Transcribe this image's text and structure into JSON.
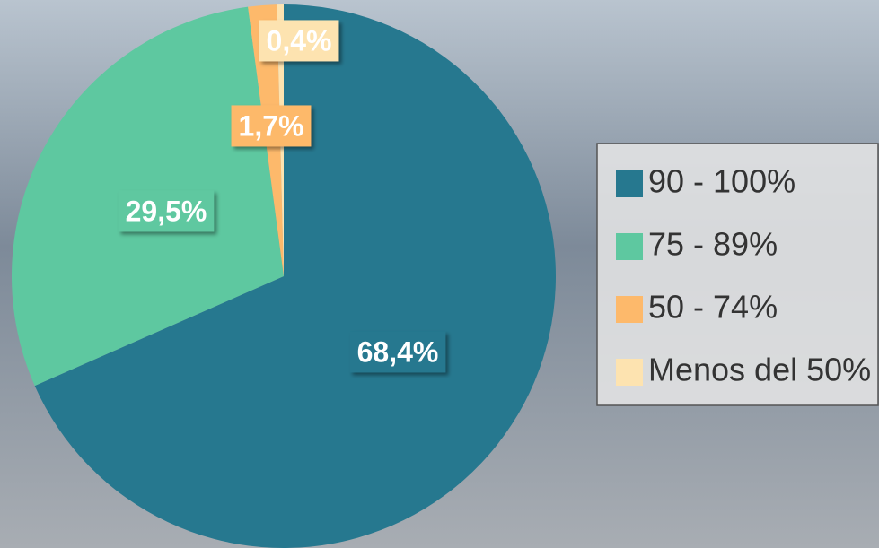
{
  "chart_data": {
    "type": "pie",
    "categories": [
      "90 - 100%",
      "75 - 89%",
      "50 - 74%",
      "Menos del 50%"
    ],
    "values": [
      68.4,
      29.5,
      1.7,
      0.4
    ],
    "value_labels": [
      "68,4%",
      "29,5%",
      "1,7%",
      "0,4%"
    ],
    "colors": [
      "#26788f",
      "#5ec8a0",
      "#fdb96b",
      "#fde3b0"
    ],
    "legend": "right"
  }
}
